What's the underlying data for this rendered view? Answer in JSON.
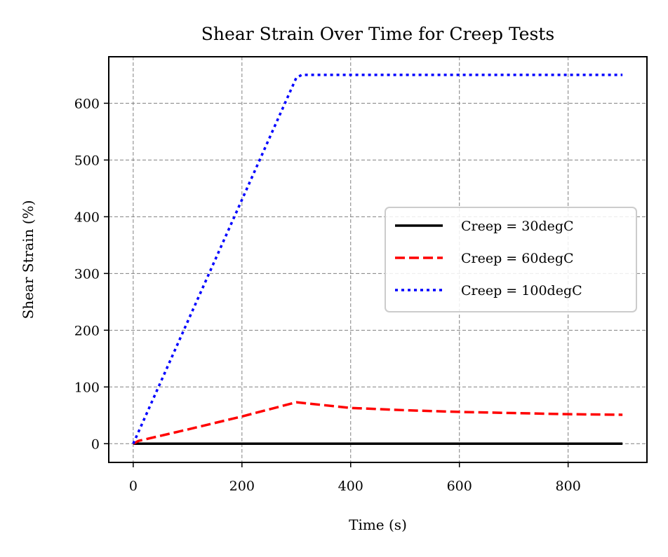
{
  "chart_data": {
    "type": "line",
    "title": "Shear Strain Over Time for Creep Tests",
    "xlabel": "Time (s)",
    "ylabel": "Shear Strain (%)",
    "xlim": [
      -45,
      945
    ],
    "ylim": [
      -33,
      682
    ],
    "xticks": [
      0,
      200,
      400,
      600,
      800
    ],
    "yticks": [
      0,
      100,
      200,
      300,
      400,
      500,
      600
    ],
    "xtick_labels": [
      "0",
      "200",
      "400",
      "600",
      "800"
    ],
    "ytick_labels": [
      "0",
      "100",
      "200",
      "300",
      "400",
      "500",
      "600"
    ],
    "grid": true,
    "legend_position": "center-right",
    "series": [
      {
        "name": "Creep = 30degC",
        "color": "#000000",
        "line_style": "solid",
        "x": [
          0,
          300,
          900
        ],
        "y": [
          0,
          0,
          0
        ]
      },
      {
        "name": "Creep = 60degC",
        "color": "#ff0000",
        "line_style": "dashed",
        "x": [
          0,
          10,
          100,
          200,
          300,
          400,
          500,
          600,
          700,
          800,
          900
        ],
        "y": [
          0,
          5,
          25,
          48,
          73,
          63,
          59,
          56,
          54,
          52,
          51
        ]
      },
      {
        "name": "Creep = 100degC",
        "color": "#0000ff",
        "line_style": "dotted",
        "x": [
          0,
          300,
          310,
          900
        ],
        "y": [
          0,
          645,
          650,
          650
        ]
      }
    ]
  }
}
